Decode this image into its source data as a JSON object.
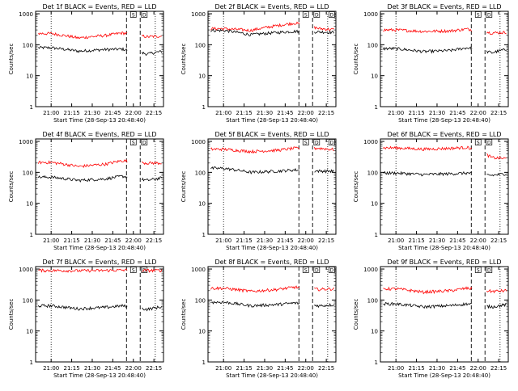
{
  "figure": {
    "ylabel": "Counts/sec",
    "xlabel": "Start Time (28-Sep-13 20:48:40)",
    "x_ticks": [
      "21:00",
      "21:15",
      "21:30",
      "21:45",
      "22:00",
      "22:15"
    ],
    "y_ticks": [
      "1",
      "10",
      "100",
      "1000"
    ],
    "markers": [
      "S",
      "D",
      "D"
    ],
    "colors": {
      "events": "#000000",
      "lld": "#ff0000"
    }
  },
  "chart_data": [
    {
      "type": "line",
      "title": "Det 1f BLACK = Events, RED = LLD",
      "ylim": [
        1,
        1200
      ],
      "scale_y": "log",
      "x_hours_window": [
        "20:48:40",
        "22:22"
      ],
      "series": [
        {
          "name": "Events",
          "values": [
            {
              "x": "21:00",
              "y": 80
            },
            {
              "x": "21:20",
              "y": 62
            },
            {
              "x": "21:40",
              "y": 70
            },
            {
              "x": "21:52",
              "y": 72
            },
            {
              "x": "22:10",
              "y": 50
            },
            {
              "x": "22:20",
              "y": 60
            }
          ]
        },
        {
          "name": "LLD",
          "values": [
            {
              "x": "21:00",
              "y": 230
            },
            {
              "x": "21:20",
              "y": 165
            },
            {
              "x": "21:40",
              "y": 200
            },
            {
              "x": "21:52",
              "y": 240
            },
            {
              "x": "22:10",
              "y": 180
            },
            {
              "x": "22:20",
              "y": 190
            }
          ]
        }
      ]
    },
    {
      "type": "line",
      "title": "Det 2f BLACK = Events, RED = LLD",
      "ylim": [
        1,
        1200
      ],
      "scale_y": "log",
      "x_hours_window": [
        "20:48:40",
        "22:22"
      ],
      "series": [
        {
          "name": "Events",
          "values": [
            {
              "x": "21:00",
              "y": 290
            },
            {
              "x": "21:20",
              "y": 210
            },
            {
              "x": "21:40",
              "y": 250
            },
            {
              "x": "21:52",
              "y": 270
            },
            {
              "x": "22:10",
              "y": 260
            },
            {
              "x": "22:20",
              "y": 250
            }
          ]
        },
        {
          "name": "LLD",
          "values": [
            {
              "x": "21:00",
              "y": 330
            },
            {
              "x": "21:20",
              "y": 290
            },
            {
              "x": "21:40",
              "y": 420
            },
            {
              "x": "21:52",
              "y": 500
            },
            {
              "x": "22:10",
              "y": 330
            },
            {
              "x": "22:20",
              "y": 310
            }
          ]
        }
      ]
    },
    {
      "type": "line",
      "title": "Det 3f BLACK = Events, RED = LLD",
      "ylim": [
        1,
        1200
      ],
      "scale_y": "log",
      "x_hours_window": [
        "20:48:40",
        "22:22"
      ],
      "series": [
        {
          "name": "Events",
          "values": [
            {
              "x": "21:00",
              "y": 75
            },
            {
              "x": "21:20",
              "y": 60
            },
            {
              "x": "21:40",
              "y": 65
            },
            {
              "x": "21:52",
              "y": 80
            },
            {
              "x": "22:10",
              "y": 55
            },
            {
              "x": "22:20",
              "y": 70
            }
          ]
        },
        {
          "name": "LLD",
          "values": [
            {
              "x": "21:00",
              "y": 300
            },
            {
              "x": "21:20",
              "y": 270
            },
            {
              "x": "21:40",
              "y": 280
            },
            {
              "x": "21:52",
              "y": 320
            },
            {
              "x": "22:10",
              "y": 240
            },
            {
              "x": "22:20",
              "y": 250
            }
          ]
        }
      ]
    },
    {
      "type": "line",
      "title": "Det 4f BLACK = Events, RED = LLD",
      "ylim": [
        1,
        1200
      ],
      "scale_y": "log",
      "x_hours_window": [
        "20:48:40",
        "22:22"
      ],
      "series": [
        {
          "name": "Events",
          "values": [
            {
              "x": "21:00",
              "y": 70
            },
            {
              "x": "21:20",
              "y": 55
            },
            {
              "x": "21:40",
              "y": 62
            },
            {
              "x": "21:52",
              "y": 75
            },
            {
              "x": "22:10",
              "y": 55
            },
            {
              "x": "22:20",
              "y": 65
            }
          ]
        },
        {
          "name": "LLD",
          "values": [
            {
              "x": "21:00",
              "y": 210
            },
            {
              "x": "21:20",
              "y": 155
            },
            {
              "x": "21:40",
              "y": 185
            },
            {
              "x": "21:52",
              "y": 240
            },
            {
              "x": "22:10",
              "y": 200
            },
            {
              "x": "22:20",
              "y": 200
            }
          ]
        }
      ]
    },
    {
      "type": "line",
      "title": "Det 5f BLACK = Events, RED = LLD",
      "ylim": [
        1,
        1200
      ],
      "scale_y": "log",
      "x_hours_window": [
        "20:48:40",
        "22:22"
      ],
      "series": [
        {
          "name": "Events",
          "values": [
            {
              "x": "21:00",
              "y": 135
            },
            {
              "x": "21:20",
              "y": 100
            },
            {
              "x": "21:40",
              "y": 110
            },
            {
              "x": "21:52",
              "y": 120
            },
            {
              "x": "22:10",
              "y": 110
            },
            {
              "x": "22:20",
              "y": 110
            }
          ]
        },
        {
          "name": "LLD",
          "values": [
            {
              "x": "21:00",
              "y": 560
            },
            {
              "x": "21:20",
              "y": 470
            },
            {
              "x": "21:40",
              "y": 520
            },
            {
              "x": "21:52",
              "y": 600
            },
            {
              "x": "22:10",
              "y": 600
            },
            {
              "x": "22:20",
              "y": 550
            }
          ]
        }
      ]
    },
    {
      "type": "line",
      "title": "Det 6f BLACK = Events, RED = LLD",
      "ylim": [
        1,
        1200
      ],
      "scale_y": "log",
      "x_hours_window": [
        "20:48:40",
        "22:22"
      ],
      "series": [
        {
          "name": "Events",
          "values": [
            {
              "x": "21:00",
              "y": 95
            },
            {
              "x": "21:20",
              "y": 85
            },
            {
              "x": "21:40",
              "y": 90
            },
            {
              "x": "21:52",
              "y": 95
            },
            {
              "x": "22:10",
              "y": 80
            },
            {
              "x": "22:20",
              "y": 90
            }
          ]
        },
        {
          "name": "LLD",
          "values": [
            {
              "x": "21:00",
              "y": 620
            },
            {
              "x": "21:20",
              "y": 560
            },
            {
              "x": "21:40",
              "y": 600
            },
            {
              "x": "21:52",
              "y": 640
            },
            {
              "x": "22:10",
              "y": 300
            },
            {
              "x": "22:20",
              "y": 280
            }
          ]
        }
      ]
    },
    {
      "type": "line",
      "title": "Det 7f BLACK = Events, RED = LLD",
      "ylim": [
        1,
        1200
      ],
      "scale_y": "log",
      "x_hours_window": [
        "20:48:40",
        "22:22"
      ],
      "series": [
        {
          "name": "Events",
          "values": [
            {
              "x": "21:00",
              "y": 65
            },
            {
              "x": "21:20",
              "y": 52
            },
            {
              "x": "21:40",
              "y": 58
            },
            {
              "x": "21:52",
              "y": 65
            },
            {
              "x": "22:10",
              "y": 50
            },
            {
              "x": "22:20",
              "y": 60
            }
          ]
        },
        {
          "name": "LLD",
          "values": [
            {
              "x": "21:00",
              "y": 900
            },
            {
              "x": "21:20",
              "y": 880
            },
            {
              "x": "21:40",
              "y": 900
            },
            {
              "x": "21:52",
              "y": 920
            },
            {
              "x": "22:10",
              "y": 900
            },
            {
              "x": "22:20",
              "y": 900
            }
          ]
        }
      ]
    },
    {
      "type": "line",
      "title": "Det 8f BLACK = Events, RED = LLD",
      "ylim": [
        1,
        1200
      ],
      "scale_y": "log",
      "x_hours_window": [
        "20:48:40",
        "22:22"
      ],
      "series": [
        {
          "name": "Events",
          "values": [
            {
              "x": "21:00",
              "y": 85
            },
            {
              "x": "21:20",
              "y": 65
            },
            {
              "x": "21:40",
              "y": 72
            },
            {
              "x": "21:52",
              "y": 80
            },
            {
              "x": "22:10",
              "y": 65
            },
            {
              "x": "22:20",
              "y": 70
            }
          ]
        },
        {
          "name": "LLD",
          "values": [
            {
              "x": "21:00",
              "y": 240
            },
            {
              "x": "21:20",
              "y": 190
            },
            {
              "x": "21:40",
              "y": 220
            },
            {
              "x": "21:52",
              "y": 260
            },
            {
              "x": "22:10",
              "y": 220
            },
            {
              "x": "22:20",
              "y": 230
            }
          ]
        }
      ]
    },
    {
      "type": "line",
      "title": "Det 9f BLACK = Events, RED = LLD",
      "ylim": [
        1,
        1200
      ],
      "scale_y": "log",
      "x_hours_window": [
        "20:48:40",
        "22:22"
      ],
      "series": [
        {
          "name": "Events",
          "values": [
            {
              "x": "21:00",
              "y": 75
            },
            {
              "x": "21:20",
              "y": 60
            },
            {
              "x": "21:40",
              "y": 66
            },
            {
              "x": "21:52",
              "y": 75
            },
            {
              "x": "22:10",
              "y": 60
            },
            {
              "x": "22:20",
              "y": 70
            }
          ]
        },
        {
          "name": "LLD",
          "values": [
            {
              "x": "21:00",
              "y": 230
            },
            {
              "x": "21:20",
              "y": 180
            },
            {
              "x": "21:40",
              "y": 200
            },
            {
              "x": "21:52",
              "y": 240
            },
            {
              "x": "22:10",
              "y": 190
            },
            {
              "x": "22:20",
              "y": 200
            }
          ]
        }
      ]
    }
  ]
}
